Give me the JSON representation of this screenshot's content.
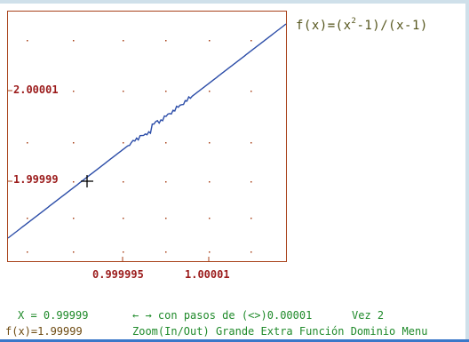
{
  "function": {
    "prefix": "f(x)=(x",
    "exponent": "2",
    "suffix": "-1)/(x-1)"
  },
  "axes": {
    "y_ticks": [
      "2.00001",
      "1.99999"
    ],
    "x_ticks": [
      "0.999995",
      "1.00001"
    ]
  },
  "status": {
    "x_readout": "X = 0.99999",
    "fx_readout": "f(x)=1.99999",
    "arrows": "← →",
    "step_text": "con pasos de (<>)0.00001",
    "vez": "Vez 2",
    "menu": {
      "zoom": "Zoom(In/Out)",
      "grande": "Grande",
      "extra": "Extra",
      "funcion": "Función",
      "dominio": "Dominio",
      "menu": "Menu"
    }
  },
  "colors": {
    "curve": "#2c4da8",
    "frame": "#a8421a",
    "tick_label": "#9b1b1b",
    "grid_dots": "#a8421a",
    "status_green": "#1f8a2a",
    "status_brown": "#6e4b12"
  },
  "cursor": {
    "x": 0.99999,
    "y": 1.99999
  }
}
